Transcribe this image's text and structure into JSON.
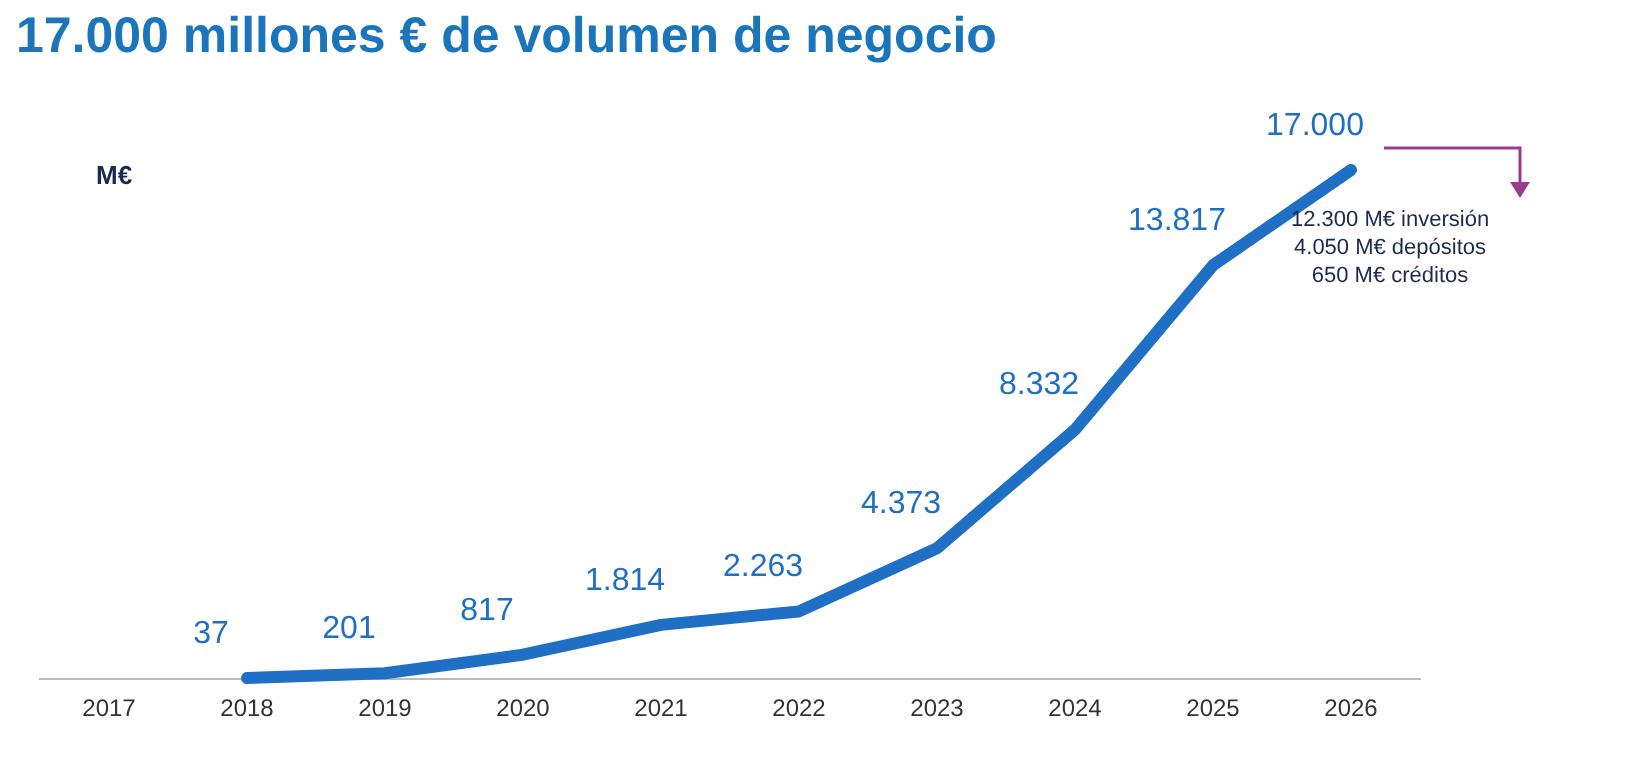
{
  "chart_data": {
    "type": "line",
    "title": "17.000 millones € de volumen de negocio",
    "categories": [
      "2017",
      "2018",
      "2019",
      "2020",
      "2021",
      "2022",
      "2023",
      "2024",
      "2025",
      "2026"
    ],
    "series": [
      {
        "color": "#1f6fc5",
        "values": [
          null,
          37,
          201,
          817,
          1814,
          2263,
          4373,
          8332,
          13817,
          17000
        ],
        "value_labels": [
          null,
          "37",
          "201",
          "817",
          "1.814",
          "2.263",
          "4.373",
          "8.332",
          "13.817",
          "17.000"
        ]
      }
    ],
    "annotations": [
      "M€",
      "12.300 M€ inversión",
      "4.050 M€ depósitos",
      "650 M€ créditos"
    ],
    "grid": false,
    "legend": false,
    "marker": "none",
    "line_style": "solid"
  }
}
